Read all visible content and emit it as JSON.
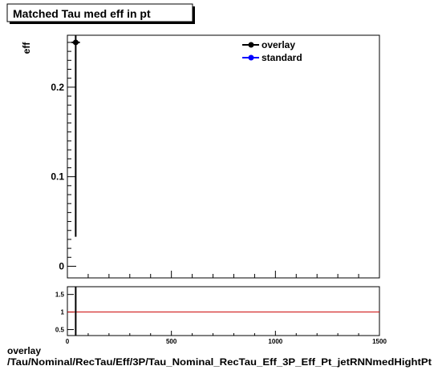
{
  "title": "Matched Tau med eff in pt",
  "footer": {
    "line1": "overlay",
    "line2": "/Tau/Nominal/RecTau/Eff/3P/Tau_Nominal_RecTau_Eff_3P_Eff_Pt_jetRNNmedHightPt"
  },
  "colors": {
    "overlay": "#000000",
    "standard": "#0000ff",
    "ratio_line": "#cc0000",
    "frame": "#000000"
  },
  "chart_data": [
    {
      "type": "scatter",
      "panel": "main",
      "ylabel": "eff",
      "xlim": [
        0,
        1500
      ],
      "ylim": [
        -0.013,
        0.258
      ],
      "y_ticks": [
        0,
        0.1,
        0.2
      ],
      "y_tick_labels": [
        "0",
        "0.1",
        "0.2"
      ],
      "legend": {
        "placement": "top-right",
        "entries": [
          {
            "name": "overlay",
            "color": "#000000"
          },
          {
            "name": "standard",
            "color": "#0000ff"
          }
        ]
      },
      "series": [
        {
          "name": "overlay",
          "color": "#000000",
          "points": [
            {
              "x": 40,
              "xerr": 20,
              "y": 0.25,
              "ylow": 0.033,
              "yhigh": 0.258
            }
          ]
        }
      ]
    },
    {
      "type": "line",
      "panel": "ratio",
      "xlim": [
        0,
        1500
      ],
      "ylim": [
        0.33,
        1.72
      ],
      "x_ticks": [
        0,
        500,
        1000,
        1500
      ],
      "x_tick_labels": [
        "0",
        "500",
        "1000",
        "1500"
      ],
      "y_ticks": [
        0.5,
        1,
        1.5
      ],
      "y_tick_labels": [
        "0.5",
        "1",
        "1.5"
      ],
      "reference_line": {
        "y": 1,
        "color": "#cc0000"
      },
      "series": [
        {
          "name": "overlay",
          "color": "#000000",
          "points": [
            {
              "x": 40,
              "y_top": 1.72,
              "y_bottom": 0.33
            }
          ]
        }
      ]
    }
  ]
}
